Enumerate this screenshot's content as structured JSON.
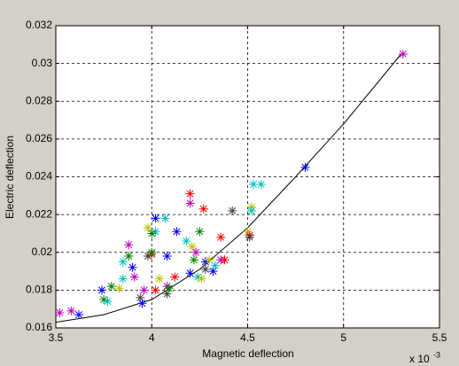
{
  "chart_data": {
    "type": "scatter",
    "xlabel": "Magnetic deflection",
    "ylabel": "Electric deflection",
    "x_scale_label": "x 10",
    "x_scale_exponent": "-3",
    "xlim": [
      3.5,
      5.5
    ],
    "xticks": [
      3.5,
      4,
      4.5,
      5,
      5.5
    ],
    "ylim": [
      0.016,
      0.032
    ],
    "yticks": [
      0.016,
      0.018,
      0.02,
      0.022,
      0.024,
      0.026,
      0.028,
      0.03,
      0.032
    ],
    "grid": true,
    "x": [
      3.52,
      3.58,
      3.62,
      3.74,
      3.75,
      3.77,
      3.79,
      3.83,
      3.85,
      3.85,
      3.88,
      3.88,
      3.9,
      3.91,
      3.94,
      3.95,
      3.96,
      3.98,
      4.0,
      3.98,
      4.0,
      4.02,
      4.02,
      4.0,
      4.02,
      4.04,
      4.07,
      4.08,
      4.08,
      4.08,
      4.09,
      4.12,
      4.13,
      4.2,
      4.2,
      4.18,
      4.21,
      4.2,
      4.22,
      4.23,
      4.24,
      4.25,
      4.27,
      4.26,
      4.28,
      4.28,
      4.3,
      4.32,
      4.33,
      4.36,
      4.36,
      4.38,
      4.42,
      4.5,
      4.51,
      4.51,
      4.52,
      4.52,
      4.53,
      4.57,
      4.8,
      5.31
    ],
    "y": [
      0.0168,
      0.0169,
      0.0167,
      0.018,
      0.0175,
      0.0174,
      0.0182,
      0.0181,
      0.0195,
      0.0186,
      0.0204,
      0.0198,
      0.0192,
      0.0187,
      0.0176,
      0.0173,
      0.018,
      0.0213,
      0.0199,
      0.0198,
      0.02,
      0.0211,
      0.0218,
      0.021,
      0.018,
      0.0186,
      0.0218,
      0.0178,
      0.0182,
      0.0198,
      0.0181,
      0.0187,
      0.0211,
      0.0226,
      0.0231,
      0.0206,
      0.0203,
      0.0189,
      0.0196,
      0.02,
      0.0187,
      0.0211,
      0.0223,
      0.0186,
      0.0195,
      0.0191,
      0.0196,
      0.019,
      0.0193,
      0.0208,
      0.0196,
      0.0196,
      0.0222,
      0.0211,
      0.0209,
      0.0208,
      0.0224,
      0.0222,
      0.0236,
      0.0236,
      0.0245,
      0.0305
    ],
    "colors": [
      "#bf00bf",
      "#bf00bf",
      "#0000ff",
      "#0000ff",
      "#008000",
      "#00bfbf",
      "#008000",
      "#bfbf00",
      "#00bfbf",
      "#00bfbf",
      "#bf00bf",
      "#008000",
      "#0000ff",
      "#bf00bf",
      "#404040",
      "#0000ff",
      "#bf00bf",
      "#bfbf00",
      "#ff0000",
      "#404040",
      "#008000",
      "#00bfbf",
      "#0000ff",
      "#008000",
      "#ff0000",
      "#bfbf00",
      "#00bfbf",
      "#404040",
      "#bf00bf",
      "#0000ff",
      "#008000",
      "#ff0000",
      "#0000ff",
      "#bf00bf",
      "#ff0000",
      "#00bfbf",
      "#bfbf00",
      "#0000ff",
      "#008000",
      "#bf00bf",
      "#00bfbf",
      "#008000",
      "#ff0000",
      "#bfbf00",
      "#0000ff",
      "#404040",
      "#bfbf00",
      "#0000ff",
      "#00bfbf",
      "#ff0000",
      "#bf00bf",
      "#ff0000",
      "#404040",
      "#bfbf00",
      "#ff0000",
      "#404040",
      "#bfbf00",
      "#00bfbf",
      "#00bfbf",
      "#00bfbf",
      "#0000ff",
      "#bf00bf"
    ],
    "fit": {
      "color": "#000000",
      "x": [
        3.5,
        3.75,
        4.0,
        4.25,
        4.5,
        4.75,
        5.0,
        5.3
      ],
      "y": [
        0.0163,
        0.0167,
        0.0175,
        0.0191,
        0.0213,
        0.024,
        0.0268,
        0.0305
      ]
    }
  }
}
